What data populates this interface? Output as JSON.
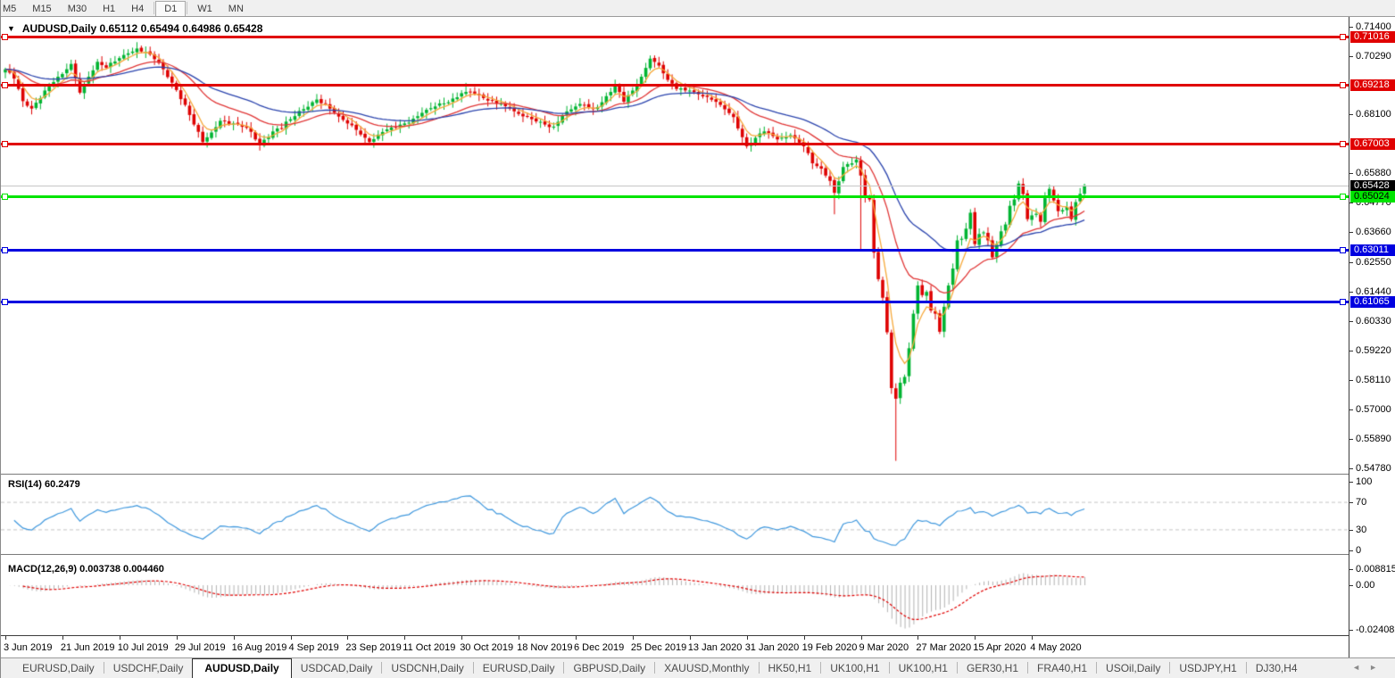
{
  "toolbar": {
    "timeframes": [
      "M5",
      "M15",
      "M30",
      "H1",
      "H4",
      "D1",
      "W1",
      "MN"
    ],
    "active": "D1"
  },
  "chart": {
    "title": {
      "menu_icon": "▼",
      "symbol": "AUDUSD,Daily",
      "ohlc": "0.65112 0.65494 0.64986 0.65428"
    }
  },
  "price_axis": {
    "ticks": [
      "0.71400",
      "0.70290",
      "0.68100",
      "0.65880",
      "0.64770",
      "0.63660",
      "0.62550",
      "0.61440",
      "0.60330",
      "0.59220",
      "0.58110",
      "0.57000",
      "0.55890",
      "0.54780"
    ]
  },
  "levels": [
    {
      "price": 0.71016,
      "label": "0.71016",
      "line_color": "#e00000",
      "tag_bg": "#e00000",
      "tag_text": "#ffffff",
      "thickness": 3,
      "handles": true,
      "role": "resistance"
    },
    {
      "price": 0.69218,
      "label": "0.69218",
      "line_color": "#e00000",
      "tag_bg": "#e00000",
      "tag_text": "#ffffff",
      "thickness": 3,
      "handles": true,
      "role": "resistance"
    },
    {
      "price": 0.67003,
      "label": "0.67003",
      "line_color": "#e00000",
      "tag_bg": "#e00000",
      "tag_text": "#ffffff",
      "thickness": 3,
      "handles": true,
      "role": "resistance"
    },
    {
      "price": 0.65428,
      "label": "0.65428",
      "line_color": "#c6c6c6",
      "tag_bg": "#000000",
      "tag_text": "#ffffff",
      "thickness": 1,
      "handles": false,
      "role": "bid-price"
    },
    {
      "price": 0.65024,
      "label": "0.65024",
      "line_color": "#00e400",
      "tag_bg": "#00e400",
      "tag_text": "#000000",
      "thickness": 3,
      "handles": true,
      "role": "support"
    },
    {
      "price": 0.63011,
      "label": "0.63011",
      "line_color": "#0000e0",
      "tag_bg": "#0000e0",
      "tag_text": "#ffffff",
      "thickness": 3,
      "handles": true,
      "role": "support"
    },
    {
      "price": 0.61065,
      "label": "0.61065",
      "line_color": "#0000e0",
      "tag_bg": "#0000e0",
      "tag_text": "#ffffff",
      "thickness": 3,
      "handles": true,
      "role": "support"
    }
  ],
  "rsi": {
    "label": "RSI(14) 60.2479",
    "name": "RSI",
    "period": 14,
    "value": "60.2479",
    "ticks": [
      "100",
      "70",
      "30",
      "0"
    ],
    "level_lines": [
      70,
      30
    ],
    "line_color": "#3e97dd"
  },
  "macd": {
    "label": "MACD(12,26,9) 0.003738 0.004460",
    "params": "12,26,9",
    "macd_value": "0.003738",
    "signal_value": "0.004460",
    "ticks": [
      "0.008815",
      "0.00",
      "-0.024082"
    ],
    "histogram_color": "#b2b2b2",
    "signal_color": "#e00000"
  },
  "date_axis": {
    "labels": [
      "3 Jun 2019",
      "21 Jun 2019",
      "10 Jul 2019",
      "29 Jul 2019",
      "16 Aug 2019",
      "4 Sep 2019",
      "23 Sep 2019",
      "11 Oct 2019",
      "30 Oct 2019",
      "18 Nov 2019",
      "6 Dec 2019",
      "25 Dec 2019",
      "13 Jan 2020",
      "31 Jan 2020",
      "19 Feb 2020",
      "9 Mar 2020",
      "27 Mar 2020",
      "15 Apr 2020",
      "4 May 2020"
    ]
  },
  "tabs": {
    "items": [
      "EURUSD,Daily",
      "USDCHF,Daily",
      "AUDUSD,Daily",
      "USDCAD,Daily",
      "USDCNH,Daily",
      "EURUSD,Daily",
      "GBPUSD,Daily",
      "XAUUSD,Monthly",
      "HK50,H1",
      "UK100,H1",
      "UK100,H1",
      "GER30,H1",
      "FRA40,H1",
      "USOil,Daily",
      "USDJPY,H1",
      "DJ30,H4"
    ],
    "active_index": 2,
    "scroll_left": "◄",
    "scroll_right": "►"
  },
  "chart_data": {
    "type": "candlestick",
    "symbol": "AUDUSD",
    "timeframe": "Daily",
    "bar_count": 247,
    "visible_date_range": [
      "3 Jun 2019",
      "20 May 2020"
    ],
    "last_bar": {
      "open": 0.65112,
      "high": 0.65494,
      "low": 0.64986,
      "close": 0.65428
    },
    "price_axis_range": {
      "top": 0.7174,
      "bottom": 0.5458
    },
    "up_color": "#00b432",
    "down_color": "#de0202",
    "close_anchors": [
      [
        0,
        0.698
      ],
      [
        2,
        0.6945
      ],
      [
        4,
        0.686
      ],
      [
        6,
        0.6832
      ],
      [
        9,
        0.69
      ],
      [
        11,
        0.6932
      ],
      [
        13,
        0.6962
      ],
      [
        15,
        0.7
      ],
      [
        17,
        0.6892
      ],
      [
        19,
        0.6952
      ],
      [
        21,
        0.7008
      ],
      [
        23,
        0.6986
      ],
      [
        26,
        0.7022
      ],
      [
        28,
        0.704
      ],
      [
        30,
        0.7058
      ],
      [
        32,
        0.7046
      ],
      [
        34,
        0.7018
      ],
      [
        36,
        0.698
      ],
      [
        39,
        0.6902
      ],
      [
        41,
        0.6846
      ],
      [
        43,
        0.6772
      ],
      [
        45,
        0.6706
      ],
      [
        47,
        0.6742
      ],
      [
        49,
        0.6786
      ],
      [
        52,
        0.6776
      ],
      [
        55,
        0.676
      ],
      [
        58,
        0.6696
      ],
      [
        61,
        0.6746
      ],
      [
        65,
        0.6792
      ],
      [
        68,
        0.683
      ],
      [
        71,
        0.6866
      ],
      [
        73,
        0.685
      ],
      [
        76,
        0.6802
      ],
      [
        78,
        0.6776
      ],
      [
        80,
        0.6752
      ],
      [
        83,
        0.6706
      ],
      [
        86,
        0.6744
      ],
      [
        89,
        0.6762
      ],
      [
        91,
        0.6776
      ],
      [
        93,
        0.6794
      ],
      [
        95,
        0.6816
      ],
      [
        98,
        0.684
      ],
      [
        101,
        0.6856
      ],
      [
        104,
        0.689
      ],
      [
        106,
        0.6896
      ],
      [
        108,
        0.6882
      ],
      [
        110,
        0.6862
      ],
      [
        113,
        0.685
      ],
      [
        115,
        0.6832
      ],
      [
        117,
        0.6812
      ],
      [
        120,
        0.6792
      ],
      [
        123,
        0.6772
      ],
      [
        125,
        0.6764
      ],
      [
        127,
        0.6806
      ],
      [
        130,
        0.684
      ],
      [
        132,
        0.6846
      ],
      [
        134,
        0.683
      ],
      [
        136,
        0.6856
      ],
      [
        139,
        0.692
      ],
      [
        141,
        0.6858
      ],
      [
        143,
        0.69
      ],
      [
        145,
        0.6952
      ],
      [
        147,
        0.702
      ],
      [
        149,
        0.6994
      ],
      [
        151,
        0.694
      ],
      [
        153,
        0.6906
      ],
      [
        156,
        0.69
      ],
      [
        158,
        0.6886
      ],
      [
        160,
        0.6876
      ],
      [
        163,
        0.6846
      ],
      [
        166,
        0.68
      ],
      [
        169,
        0.669
      ],
      [
        171,
        0.6722
      ],
      [
        173,
        0.6746
      ],
      [
        176,
        0.6716
      ],
      [
        179,
        0.6732
      ],
      [
        182,
        0.669
      ],
      [
        184,
        0.6626
      ],
      [
        186,
        0.6606
      ],
      [
        188,
        0.656
      ],
      [
        189,
        0.6515
      ],
      [
        191,
        0.6612
      ],
      [
        193,
        0.6626
      ],
      [
        194,
        0.664
      ],
      [
        195,
        0.658
      ],
      [
        196,
        0.65
      ],
      [
        197,
        0.649
      ],
      [
        198,
        0.629
      ],
      [
        199,
        0.619
      ],
      [
        200,
        0.612
      ],
      [
        201,
        0.599
      ],
      [
        202,
        0.578
      ],
      [
        203,
        0.574
      ],
      [
        204,
        0.58
      ],
      [
        205,
        0.5822
      ],
      [
        206,
        0.593
      ],
      [
        207,
        0.606
      ],
      [
        208,
        0.6166
      ],
      [
        209,
        0.613
      ],
      [
        210,
        0.6142
      ],
      [
        211,
        0.6072
      ],
      [
        212,
        0.606
      ],
      [
        213,
        0.5992
      ],
      [
        214,
        0.6086
      ],
      [
        215,
        0.6166
      ],
      [
        216,
        0.623
      ],
      [
        217,
        0.6336
      ],
      [
        218,
        0.6342
      ],
      [
        219,
        0.638
      ],
      [
        220,
        0.644
      ],
      [
        221,
        0.6322
      ],
      [
        222,
        0.636
      ],
      [
        223,
        0.6366
      ],
      [
        224,
        0.6336
      ],
      [
        225,
        0.6272
      ],
      [
        226,
        0.632
      ],
      [
        227,
        0.637
      ],
      [
        228,
        0.6396
      ],
      [
        229,
        0.6466
      ],
      [
        230,
        0.649
      ],
      [
        231,
        0.655
      ],
      [
        232,
        0.651
      ],
      [
        233,
        0.6416
      ],
      [
        234,
        0.643
      ],
      [
        235,
        0.6436
      ],
      [
        236,
        0.6406
      ],
      [
        237,
        0.6496
      ],
      [
        238,
        0.653
      ],
      [
        239,
        0.6486
      ],
      [
        240,
        0.6446
      ],
      [
        241,
        0.645
      ],
      [
        242,
        0.6462
      ],
      [
        243,
        0.6416
      ],
      [
        244,
        0.648
      ],
      [
        245,
        0.6511
      ],
      [
        246,
        0.65428
      ]
    ],
    "wick_overrides": {
      "30": {
        "high": 0.7082
      },
      "105": {
        "high": 0.6929
      },
      "147": {
        "high": 0.7032
      },
      "189": {
        "low": 0.6434
      },
      "195": {
        "low": 0.63
      },
      "203": {
        "low": 0.5506
      }
    },
    "moving_averages": [
      {
        "name": "fast",
        "type": "ema",
        "period": 5,
        "color": "#f6a93c"
      },
      {
        "name": "medium",
        "type": "ema",
        "period": 20,
        "color": "#e03636"
      },
      {
        "name": "slow",
        "type": "ema",
        "period": 40,
        "color": "#2b44ad"
      }
    ],
    "horizontal_levels": [
      0.71016,
      0.69218,
      0.67003,
      0.65024,
      0.63011,
      0.61065
    ],
    "indicators": [
      "RSI(14)",
      "MACD(12,26,9)"
    ]
  }
}
